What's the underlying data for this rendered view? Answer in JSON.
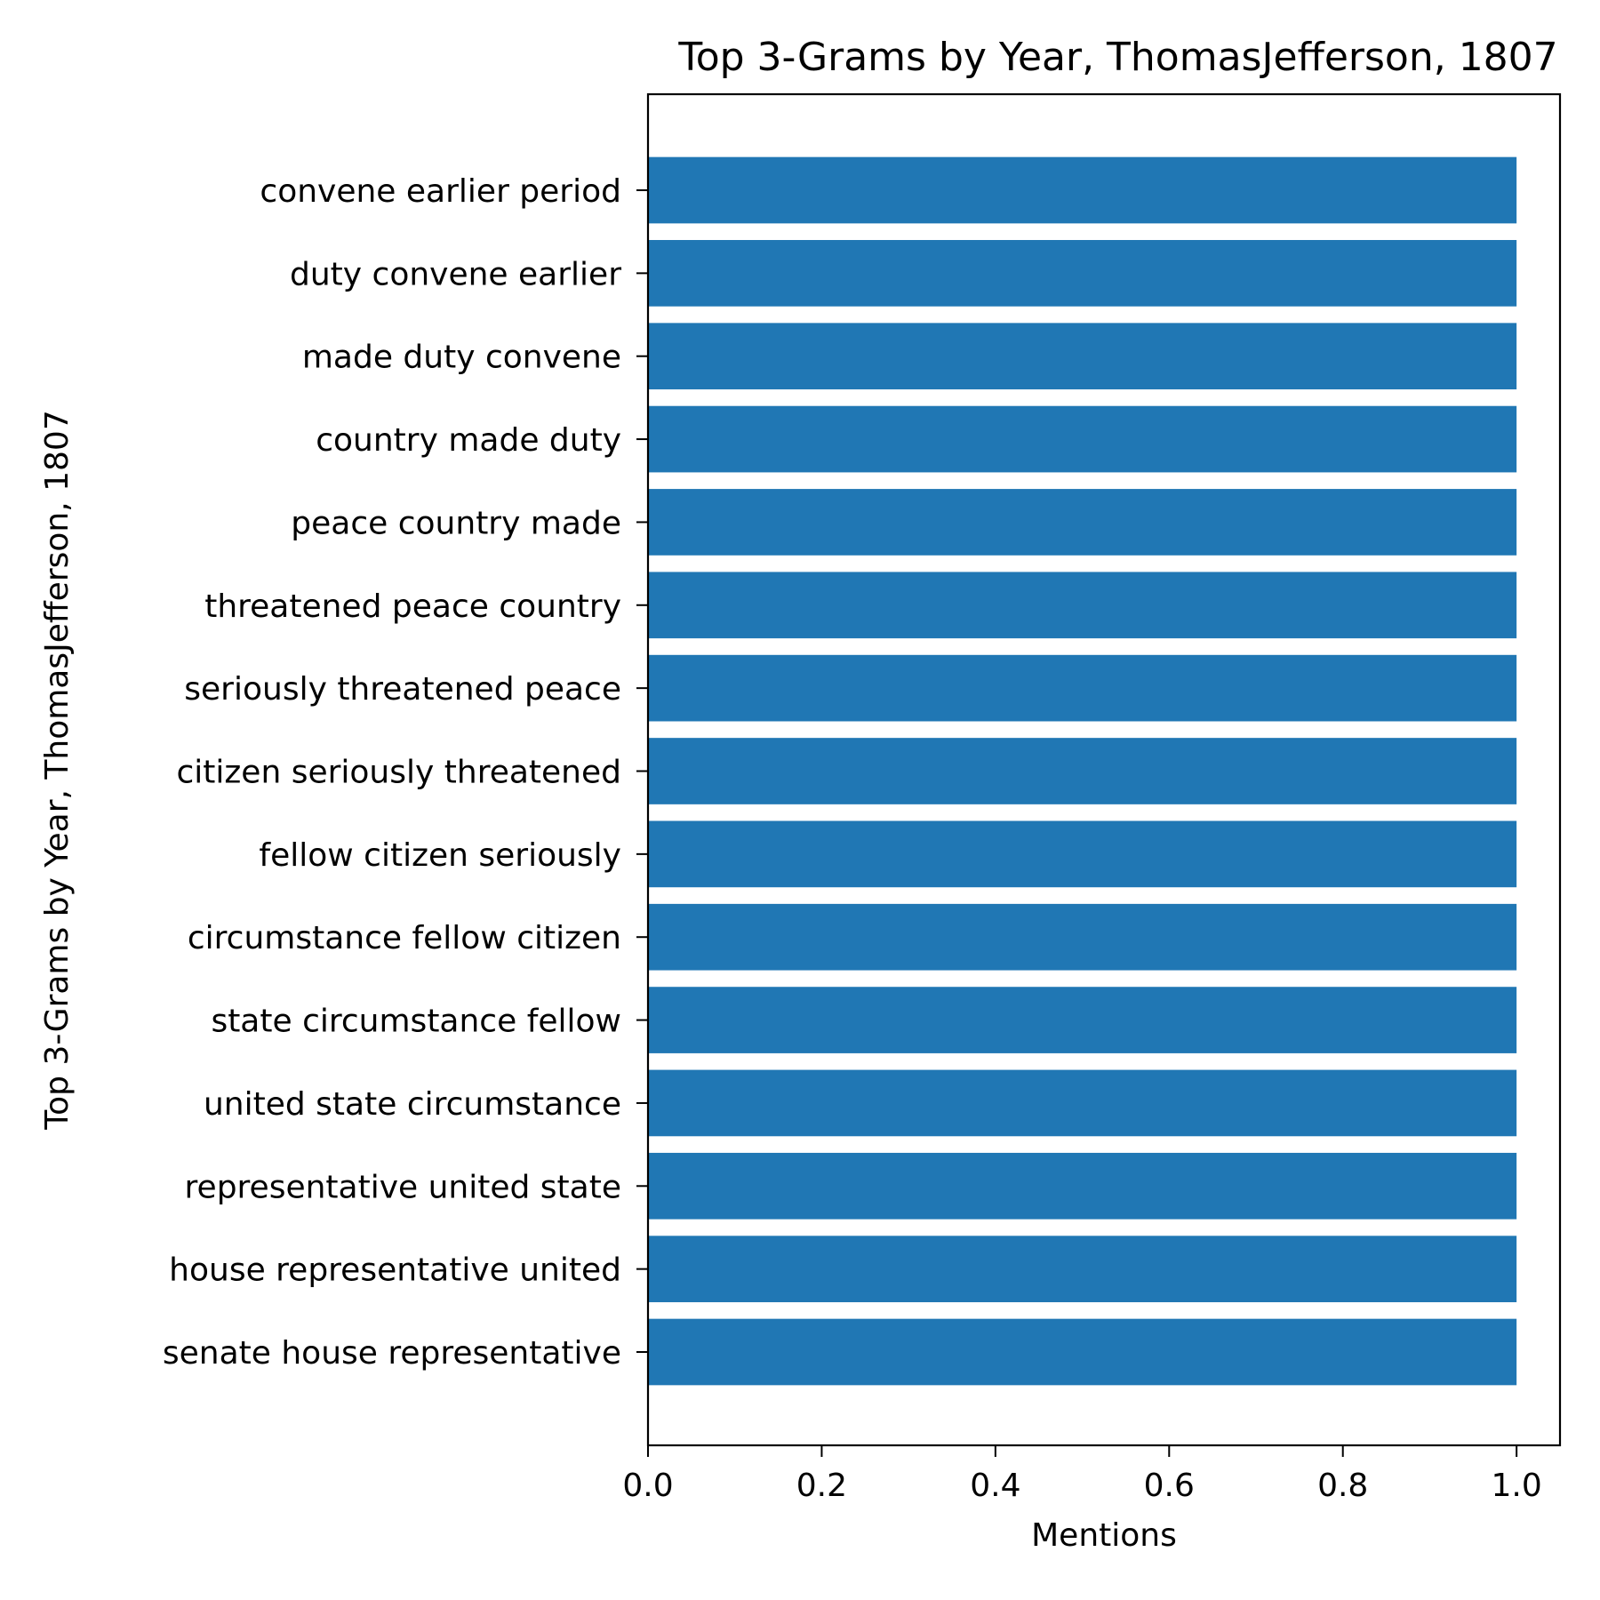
{
  "chart_data": {
    "type": "bar",
    "orientation": "horizontal",
    "title": "Top 3-Grams by Year, ThomasJefferson, 1807",
    "xlabel": "Mentions",
    "ylabel": "Top 3-Grams by Year, ThomasJefferson, 1807",
    "xlim": [
      0,
      1.05
    ],
    "xticks": [
      "0.0",
      "0.2",
      "0.4",
      "0.6",
      "0.8",
      "1.0"
    ],
    "categories": [
      "senate house representative",
      "house representative united",
      "representative united state",
      "united state circumstance",
      "state circumstance fellow",
      "circumstance fellow citizen",
      "fellow citizen seriously",
      "citizen seriously threatened",
      "seriously threatened peace",
      "threatened peace country",
      "peace country made",
      "country made duty",
      "made duty convene",
      "duty convene earlier",
      "convene earlier period"
    ],
    "values": [
      1,
      1,
      1,
      1,
      1,
      1,
      1,
      1,
      1,
      1,
      1,
      1,
      1,
      1,
      1
    ],
    "bar_color": "#2077b4",
    "grid": false,
    "legend": false
  }
}
